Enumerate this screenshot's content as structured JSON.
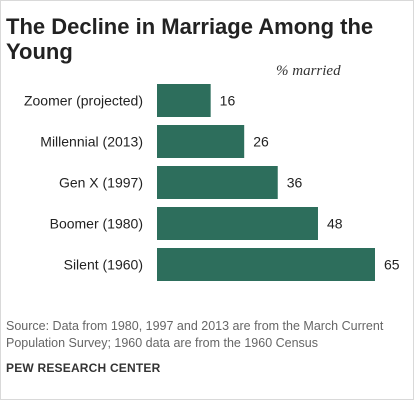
{
  "chart_data": {
    "type": "bar",
    "orientation": "horizontal",
    "title": "The Decline in Marriage Among the Young",
    "unit_label": "% married",
    "categories": [
      "Zoomer (projected)",
      "Millennial (2013)",
      "Gen X (1997)",
      "Boomer (1980)",
      "Silent (1960)"
    ],
    "values": [
      16,
      26,
      36,
      48,
      65
    ],
    "xlim": [
      0,
      65
    ],
    "grid": false,
    "legend": "none",
    "bar_color": "#2d6e5c"
  },
  "footer": {
    "source": "Source: Data from 1980, 1997 and 2013 are from the March Current Population Survey; 1960 data are from the 1960 Census",
    "brand": "PEW RESEARCH CENTER"
  }
}
